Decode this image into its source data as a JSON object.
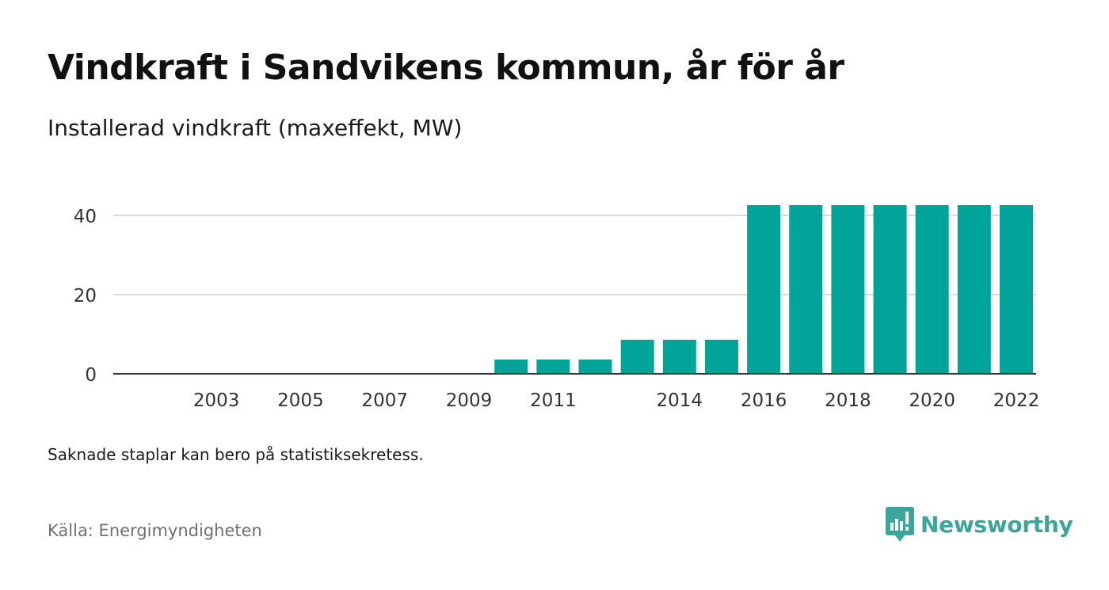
{
  "header": {
    "title": "Vindkraft i Sandvikens kommun, år för år",
    "subtitle": "Installerad vindkraft (maxeffekt, MW)"
  },
  "footer": {
    "note": "Saknade staplar kan bero på statistiksekretess.",
    "source": "Källa: Energimyndigheten",
    "brand": "Newsworthy",
    "brand_icon": "bar-chart-speech-bubble-icon"
  },
  "colors": {
    "bar": "#00a499",
    "brand": "#3aa699",
    "grid": "#d9d9d9",
    "axis": "#333333"
  },
  "chart_data": {
    "type": "bar",
    "title": "Vindkraft i Sandvikens kommun, år för år",
    "ylabel": "",
    "xlabel": "",
    "categories": [
      "2002",
      "2003",
      "2004",
      "2005",
      "2006",
      "2007",
      "2008",
      "2009",
      "2010",
      "2011",
      "2012",
      "2013",
      "2014",
      "2015",
      "2016",
      "2017",
      "2018",
      "2019",
      "2020",
      "2021",
      "2022"
    ],
    "values": [
      0,
      0,
      0,
      0,
      0,
      0,
      0,
      0,
      3.6,
      3.6,
      3.6,
      8.6,
      8.6,
      8.6,
      42.6,
      42.6,
      42.6,
      42.6,
      42.6,
      42.6,
      42.6
    ],
    "x_tick_labels": [
      "2003",
      "2005",
      "2007",
      "2009",
      "2011",
      "2014",
      "2016",
      "2018",
      "2020",
      "2022"
    ],
    "y_ticks": [
      0,
      20,
      40
    ],
    "ylim": [
      0,
      45
    ],
    "grid": true,
    "legend": "none"
  }
}
